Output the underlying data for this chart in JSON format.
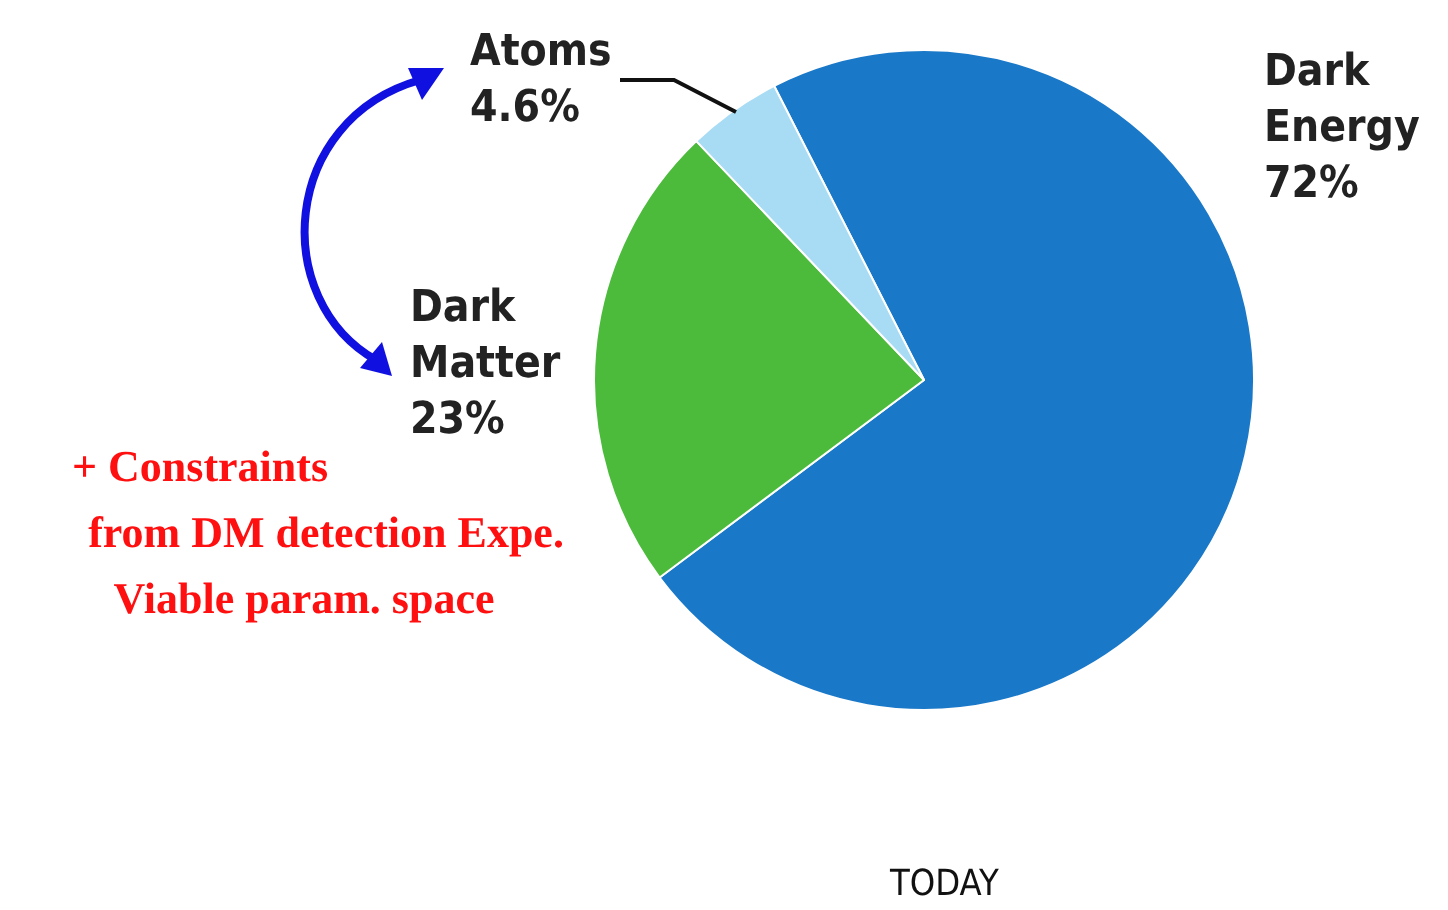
{
  "chart_data": {
    "type": "pie",
    "title": "TODAY",
    "categories": [
      "Dark Energy",
      "Dark Matter",
      "Atoms"
    ],
    "values": [
      72,
      23,
      4.6
    ],
    "value_labels": [
      "72%",
      "23%",
      "4.6%"
    ],
    "colors": [
      "#1a78c8",
      "#4cbb3c",
      "#a8dcf4"
    ],
    "legend": false,
    "annotations": [
      "+ Constraints",
      "from DM detection Expe.",
      "Viable param. space"
    ]
  }
}
